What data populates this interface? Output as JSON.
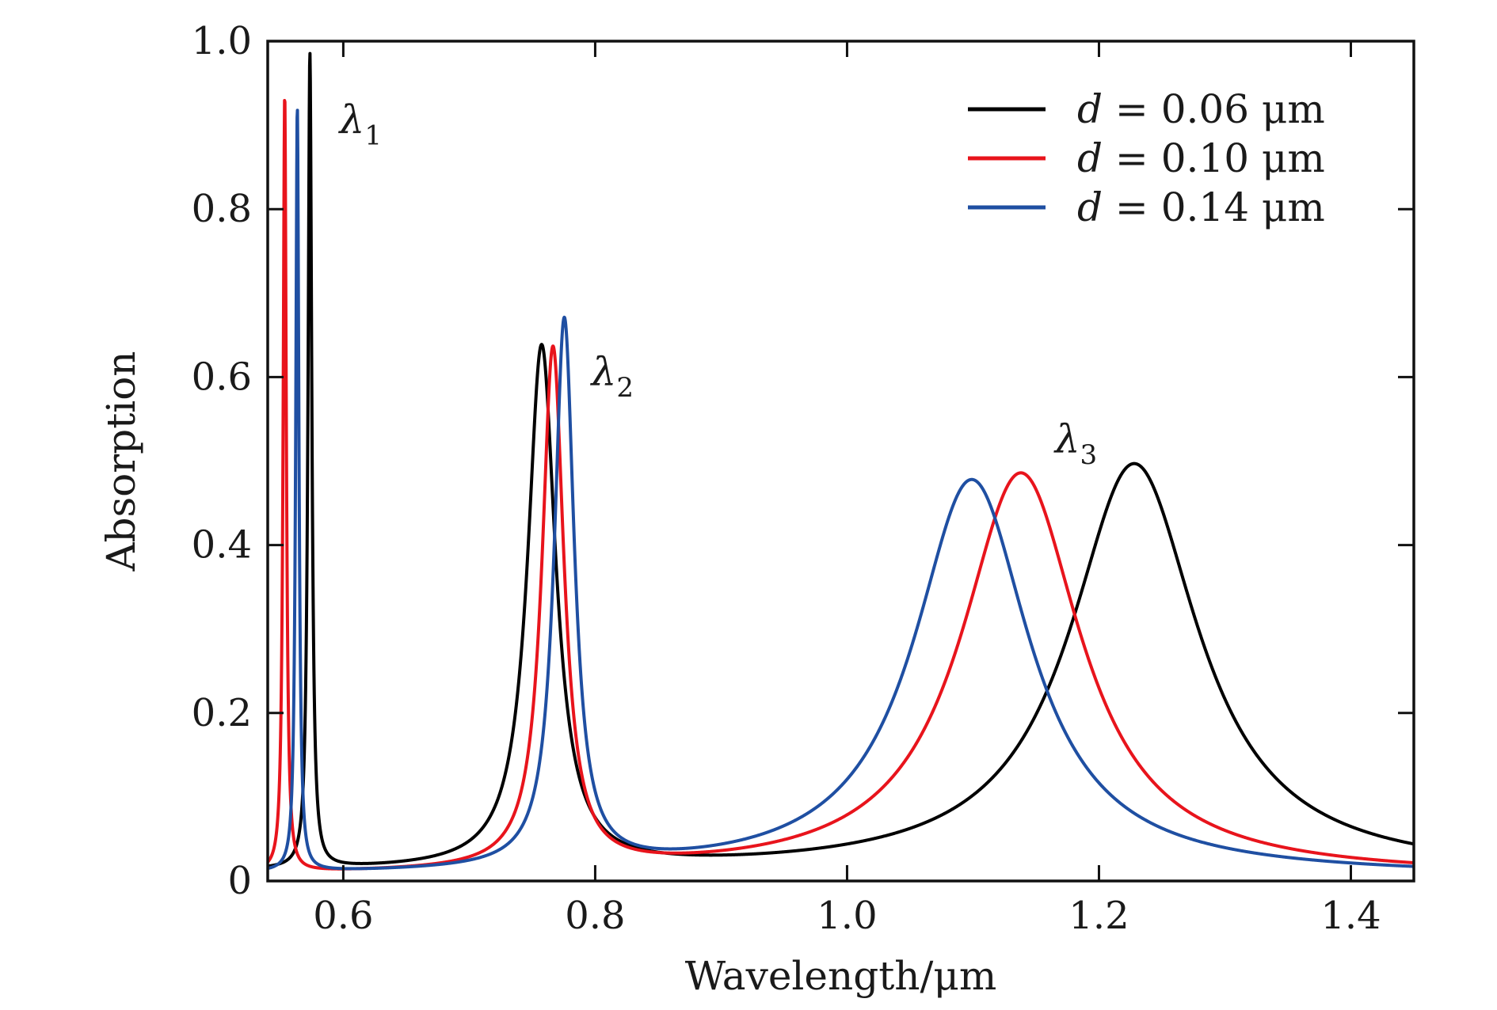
{
  "chart_data": {
    "type": "line",
    "title": "",
    "xlabel": "Wavelength/μm",
    "ylabel": "Absorption",
    "xlim": [
      0.54,
      1.45
    ],
    "ylim": [
      0,
      1.0
    ],
    "xticks": [
      0.6,
      0.8,
      1.0,
      1.2,
      1.4
    ],
    "xtick_labels": [
      "0.6",
      "0.8",
      "1.0",
      "1.2",
      "1.4"
    ],
    "yticks": [
      0,
      0.2,
      0.4,
      0.6,
      0.8,
      1.0
    ],
    "ytick_labels": [
      "0",
      "0.2",
      "0.4",
      "0.6",
      "0.8",
      "1.0"
    ],
    "grid": false,
    "legend_position": "top-right",
    "annotations": [
      {
        "base": "λ",
        "sub": "1",
        "x": 0.597,
        "y": 0.89
      },
      {
        "base": "λ",
        "sub": "2",
        "x": 0.797,
        "y": 0.59
      },
      {
        "base": "λ",
        "sub": "3",
        "x": 1.165,
        "y": 0.51
      }
    ],
    "series": [
      {
        "name": "d = 0.06 μm",
        "legend_var": "d",
        "legend_value": " = 0.06 μm",
        "color": "#000000",
        "baseline": 0.0085,
        "peaks": [
          {
            "center": 0.5735,
            "amplitude": 0.97,
            "width": 0.0018
          },
          {
            "center": 0.7575,
            "amplitude": 0.622,
            "width": 0.0135
          },
          {
            "center": 1.228,
            "amplitude": 0.488,
            "width": 0.062
          }
        ]
      },
      {
        "name": "d = 0.10 μm",
        "legend_var": "d",
        "legend_value": " = 0.10 μm",
        "color": "#e8141c",
        "baseline": 0.0055,
        "peaks": [
          {
            "center": 0.5535,
            "amplitude": 0.925,
            "width": 0.0015
          },
          {
            "center": 0.7665,
            "amplitude": 0.62,
            "width": 0.0105
          },
          {
            "center": 1.138,
            "amplitude": 0.48,
            "width": 0.058
          }
        ]
      },
      {
        "name": "d = 0.14 μm",
        "legend_var": "d",
        "legend_value": " = 0.14 μm",
        "color": "#1f4fa2",
        "baseline": 0.0055,
        "peaks": [
          {
            "center": 0.5635,
            "amplitude": 0.91,
            "width": 0.0015
          },
          {
            "center": 0.7755,
            "amplitude": 0.652,
            "width": 0.0095
          },
          {
            "center": 1.099,
            "amplitude": 0.472,
            "width": 0.056
          }
        ]
      }
    ]
  }
}
